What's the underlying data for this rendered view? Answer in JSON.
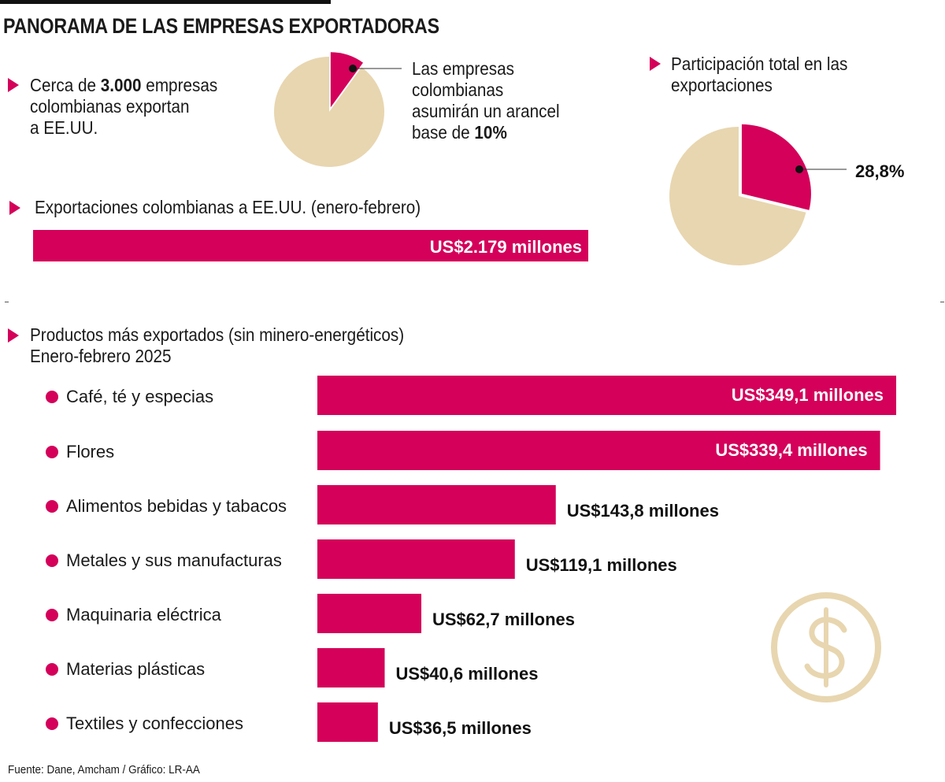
{
  "title": "PANORAMA DE LAS EMPRESAS EXPORTADORAS",
  "colors": {
    "accent": "#d4005a",
    "neutral": "#e8d6b0",
    "text": "#1a1a1a"
  },
  "intro": {
    "pre": "Cerca de ",
    "bold": "3.000",
    "post": " empresas",
    "line2": "colombianas exportan",
    "line3": "a EE.UU."
  },
  "tariff_note": {
    "line1": "Las empresas",
    "line2": "colombianas",
    "line3": "asumirán un arancel",
    "line4_pre": "base de ",
    "line4_bold": "10%"
  },
  "share_heading": {
    "line1": "Participación total en las",
    "line2": "exportaciones"
  },
  "exports_heading": "Exportaciones colombianas a EE.UU. (enero-febrero)",
  "products_heading": {
    "line1": "Productos más exportados (sin minero-energéticos)",
    "line2": "Enero-febrero 2025"
  },
  "icon": "dollar-circle-icon",
  "footer": "Fuente: Dane, Amcham / Gráfico: LR-AA",
  "chart_data": [
    {
      "type": "pie",
      "slices": [
        {
          "label": "Arancel base",
          "value": 10
        },
        {
          "label": "",
          "value": 90
        }
      ],
      "highlight_label": "10%"
    },
    {
      "type": "pie",
      "slices": [
        {
          "label": "28,8%",
          "value": 28.8
        },
        {
          "label": "",
          "value": 71.2
        }
      ]
    },
    {
      "type": "bar",
      "orientation": "horizontal",
      "categories": [
        ""
      ],
      "values": [
        2179
      ],
      "data_labels": [
        "US$2.179 millones"
      ],
      "unit": "US$ millones"
    },
    {
      "type": "bar",
      "orientation": "horizontal",
      "unit": "US$ millones",
      "categories": [
        "Café, té y especias",
        "Flores",
        "Alimentos bebidas y tabacos",
        "Metales y sus manufacturas",
        "Maquinaria eléctrica",
        "Materias plásticas",
        "Textiles y confecciones"
      ],
      "values": [
        349.1,
        339.4,
        143.8,
        119.1,
        62.7,
        40.6,
        36.5
      ],
      "data_labels": [
        "US$349,1 millones",
        "US$339,4 millones",
        "US$143,8 millones",
        "US$119,1 millones",
        "US$62,7 millones",
        "US$40,6 millones",
        "US$36,5 millones"
      ]
    }
  ]
}
